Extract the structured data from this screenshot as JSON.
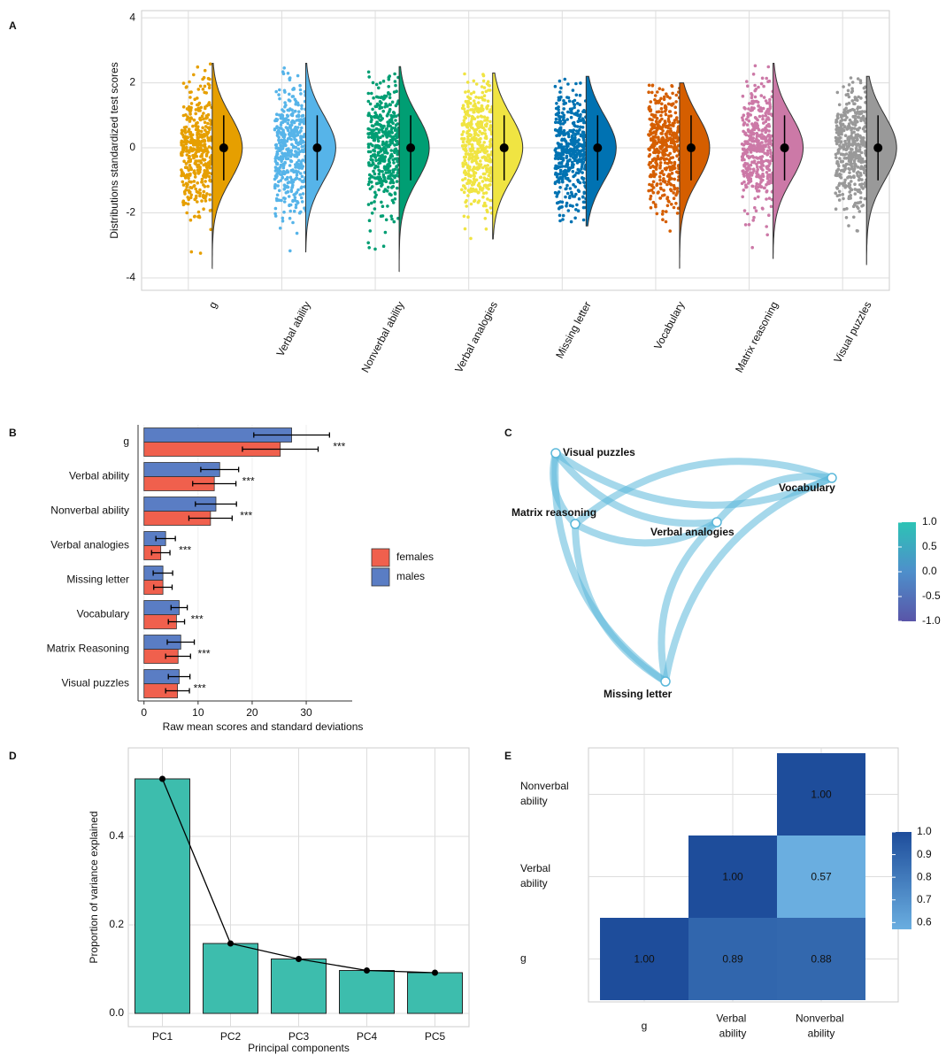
{
  "chart_data": [
    {
      "type": "raincloud",
      "panel_label": "A",
      "ylabel": "Distributions standardized test scores",
      "categories": [
        "g",
        "Verbal ability",
        "Nonverbal ability",
        "Verbal analogies",
        "Missing letter",
        "Vocabulary",
        "Matrix reasoning",
        "Visual puzzles"
      ],
      "colors": [
        "#E69F00",
        "#56B4E9",
        "#009E73",
        "#F0E442",
        "#0072B2",
        "#D55E00",
        "#CC79A7",
        "#999999"
      ],
      "means": [
        0,
        0,
        0,
        0,
        0,
        0,
        0,
        0
      ],
      "sds": [
        1,
        1,
        1,
        1,
        1,
        1,
        1,
        1
      ],
      "mins": [
        -3.7,
        -3.2,
        -3.8,
        -2.8,
        -2.4,
        -3.7,
        -3.4,
        -3.6
      ],
      "maxs": [
        2.6,
        2.6,
        2.5,
        2.3,
        2.2,
        2.0,
        2.6,
        2.2
      ],
      "ylim": [
        -4.38,
        4.22
      ],
      "yticks": [
        -4,
        -2,
        0,
        2,
        4
      ],
      "grid": true
    },
    {
      "type": "bar_h_grouped",
      "panel_label": "B",
      "xlabel": "Raw mean scores and standard deviations",
      "categories": [
        "g",
        "Verbal ability",
        "Nonverbal ability",
        "Verbal analogies",
        "Missing letter",
        "Vocabulary",
        "Matrix Reasoning",
        "Visual puzzles"
      ],
      "series": [
        {
          "name": "females",
          "color": "#F0604D",
          "values": [
            25.2,
            13,
            12.3,
            3.1,
            3.5,
            6,
            6.3,
            6.2
          ],
          "errors": [
            7,
            4,
            4,
            1.7,
            1.7,
            1.5,
            2.3,
            2.2
          ]
        },
        {
          "name": "males",
          "color": "#5A7DC4",
          "values": [
            27.3,
            14,
            13.3,
            4,
            3.5,
            6.5,
            6.8,
            6.5
          ],
          "errors": [
            7,
            3.5,
            3.8,
            1.8,
            1.8,
            1.5,
            2.5,
            2
          ]
        }
      ],
      "annotations": [
        "***",
        "***",
        "***",
        "***",
        null,
        "***",
        "***",
        "***"
      ],
      "xlim": [
        -1.1,
        38.5
      ],
      "xticks": [
        0,
        10,
        20,
        30
      ],
      "grid": true
    },
    {
      "type": "network",
      "panel_label": "C",
      "nodes": [
        {
          "label": "Visual puzzles"
        },
        {
          "label": "Vocabulary"
        },
        {
          "label": "Matrix reasoning"
        },
        {
          "label": "Verbal analogies"
        },
        {
          "label": "Missing letter"
        }
      ],
      "edge_color": "#5BB8DA",
      "colorbar": {
        "lim": [
          -1,
          1
        ],
        "colors": [
          "#5955A8",
          "#4E8FCB",
          "#2DC3B5"
        ],
        "ticks": [
          {
            "value": 1,
            "label": "1.0"
          },
          0.5,
          {
            "value": 0,
            "label": "0.0"
          },
          -0.5,
          {
            "value": -1,
            "label": "-1.0"
          }
        ]
      }
    },
    {
      "type": "bar_line",
      "panel_label": "D",
      "ylabel": "Proportion of variance explained",
      "xlabel": "Principal components",
      "categories": [
        "PC1",
        "PC2",
        "PC3",
        "PC4",
        "PC5"
      ],
      "values": [
        0.53,
        0.158,
        0.123,
        0.097,
        0.092
      ],
      "color": "#3DBDAD",
      "ylim": [
        -0.03,
        0.6
      ],
      "yticks": [
        {
          "value": 0,
          "label": "0.0"
        },
        0.2,
        0.4
      ],
      "grid": true
    },
    {
      "type": "heatmap",
      "panel_label": "E",
      "x_categories": [
        "g",
        "Verbal ability",
        "Nonverbal ability"
      ],
      "y_categories": [
        "g",
        "Verbal ability",
        "Nonverbal ability"
      ],
      "values": [
        [
          1,
          0.89,
          0.88
        ],
        [
          null,
          1,
          0.57
        ],
        [
          null,
          null,
          1
        ]
      ],
      "value_labels": [
        [
          "1.00",
          "0.89",
          "0.88"
        ],
        [
          null,
          "1.00",
          "0.57"
        ],
        [
          null,
          null,
          "1.00"
        ]
      ],
      "colorbar": {
        "lim": [
          0.57,
          1
        ],
        "colors": [
          "#6AAEE0",
          "#1E4D9B"
        ],
        "ticks": [
          {
            "value": 1,
            "label": "1.0"
          },
          0.9,
          0.8,
          0.7,
          0.6
        ]
      }
    }
  ]
}
